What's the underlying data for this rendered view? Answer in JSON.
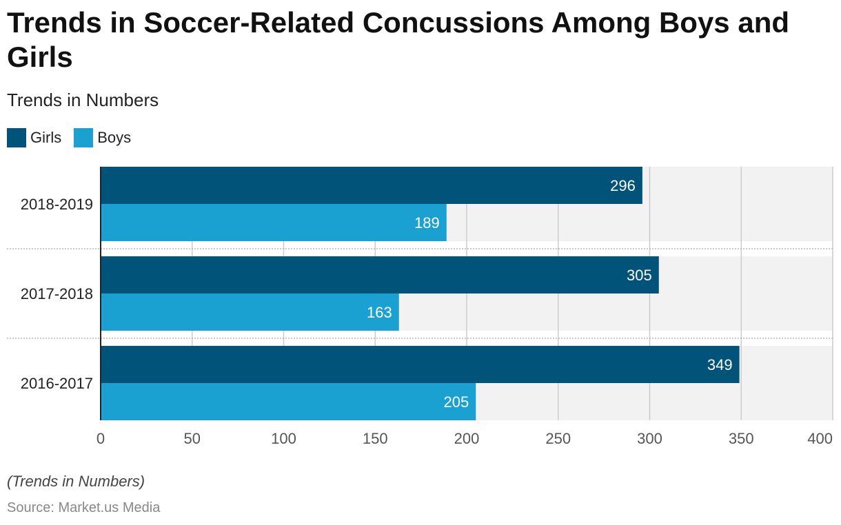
{
  "title": "Trends in Soccer-Related Concussions Among Boys and Girls",
  "subtitle": "Trends in Numbers",
  "footnote": "(Trends in Numbers)",
  "source": "Source: Market.us Media",
  "colors": {
    "girls": "#02537a",
    "boys": "#1ba1d1",
    "band": "#f2f2f2",
    "grid": "#cccccc"
  },
  "chart_data": {
    "type": "bar",
    "orientation": "horizontal",
    "categories": [
      "2018-2019",
      "2017-2018",
      "2016-2017"
    ],
    "series": [
      {
        "name": "Girls",
        "values": [
          296,
          305,
          349
        ]
      },
      {
        "name": "Boys",
        "values": [
          189,
          163,
          205
        ]
      }
    ],
    "xlim": [
      0,
      400
    ],
    "xticks": [
      "0",
      "50",
      "100",
      "150",
      "200",
      "250",
      "300",
      "350",
      "400"
    ],
    "xlabel": "",
    "ylabel": "",
    "grid": true,
    "legend": "top-left",
    "data_labels": true
  }
}
